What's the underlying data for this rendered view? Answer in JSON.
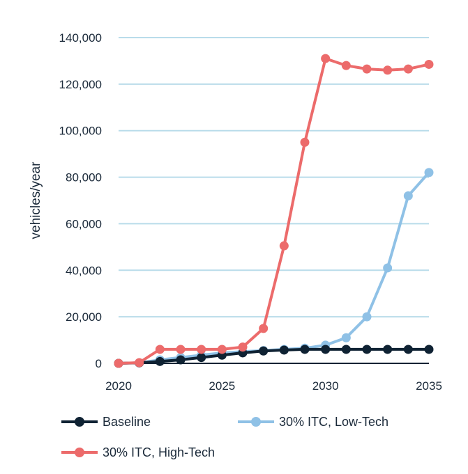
{
  "chart_data": {
    "type": "line",
    "title": "",
    "xlabel": "",
    "ylabel": "vehicles/year",
    "x": [
      2020,
      2021,
      2022,
      2023,
      2024,
      2025,
      2026,
      2027,
      2028,
      2029,
      2030,
      2031,
      2032,
      2033,
      2034,
      2035
    ],
    "xticks": [
      2020,
      2025,
      2030,
      2035
    ],
    "xtick_labels": [
      "2020",
      "2025",
      "2030",
      "2035"
    ],
    "yticks": [
      0,
      20000,
      40000,
      60000,
      80000,
      100000,
      120000,
      140000
    ],
    "ytick_labels": [
      "0",
      "20,000",
      "40,000",
      "60,000",
      "80,000",
      "100,000",
      "120,000",
      "140,000"
    ],
    "xlim": [
      2020,
      2035
    ],
    "ylim": [
      0,
      140000
    ],
    "grid": "horizontal",
    "legend_position": "bottom",
    "series": [
      {
        "name": "Baseline",
        "color": "#0f2233",
        "values": [
          0,
          200,
          800,
          1500,
          2500,
          3500,
          4500,
          5300,
          5700,
          6000,
          6000,
          6000,
          6000,
          6000,
          6000,
          6000
        ]
      },
      {
        "name": "30% ITC, Low-Tech",
        "color": "#8fc1e6",
        "values": [
          0,
          200,
          1500,
          2500,
          3500,
          4500,
          5000,
          5500,
          6000,
          6500,
          7800,
          11000,
          20000,
          41000,
          72000,
          82000
        ]
      },
      {
        "name": "30% ITC, High-Tech",
        "color": "#ec6b6b",
        "values": [
          0,
          300,
          6000,
          6000,
          6000,
          6000,
          7000,
          15000,
          50500,
          95000,
          131000,
          128000,
          126500,
          126000,
          126500,
          128500
        ]
      }
    ]
  }
}
